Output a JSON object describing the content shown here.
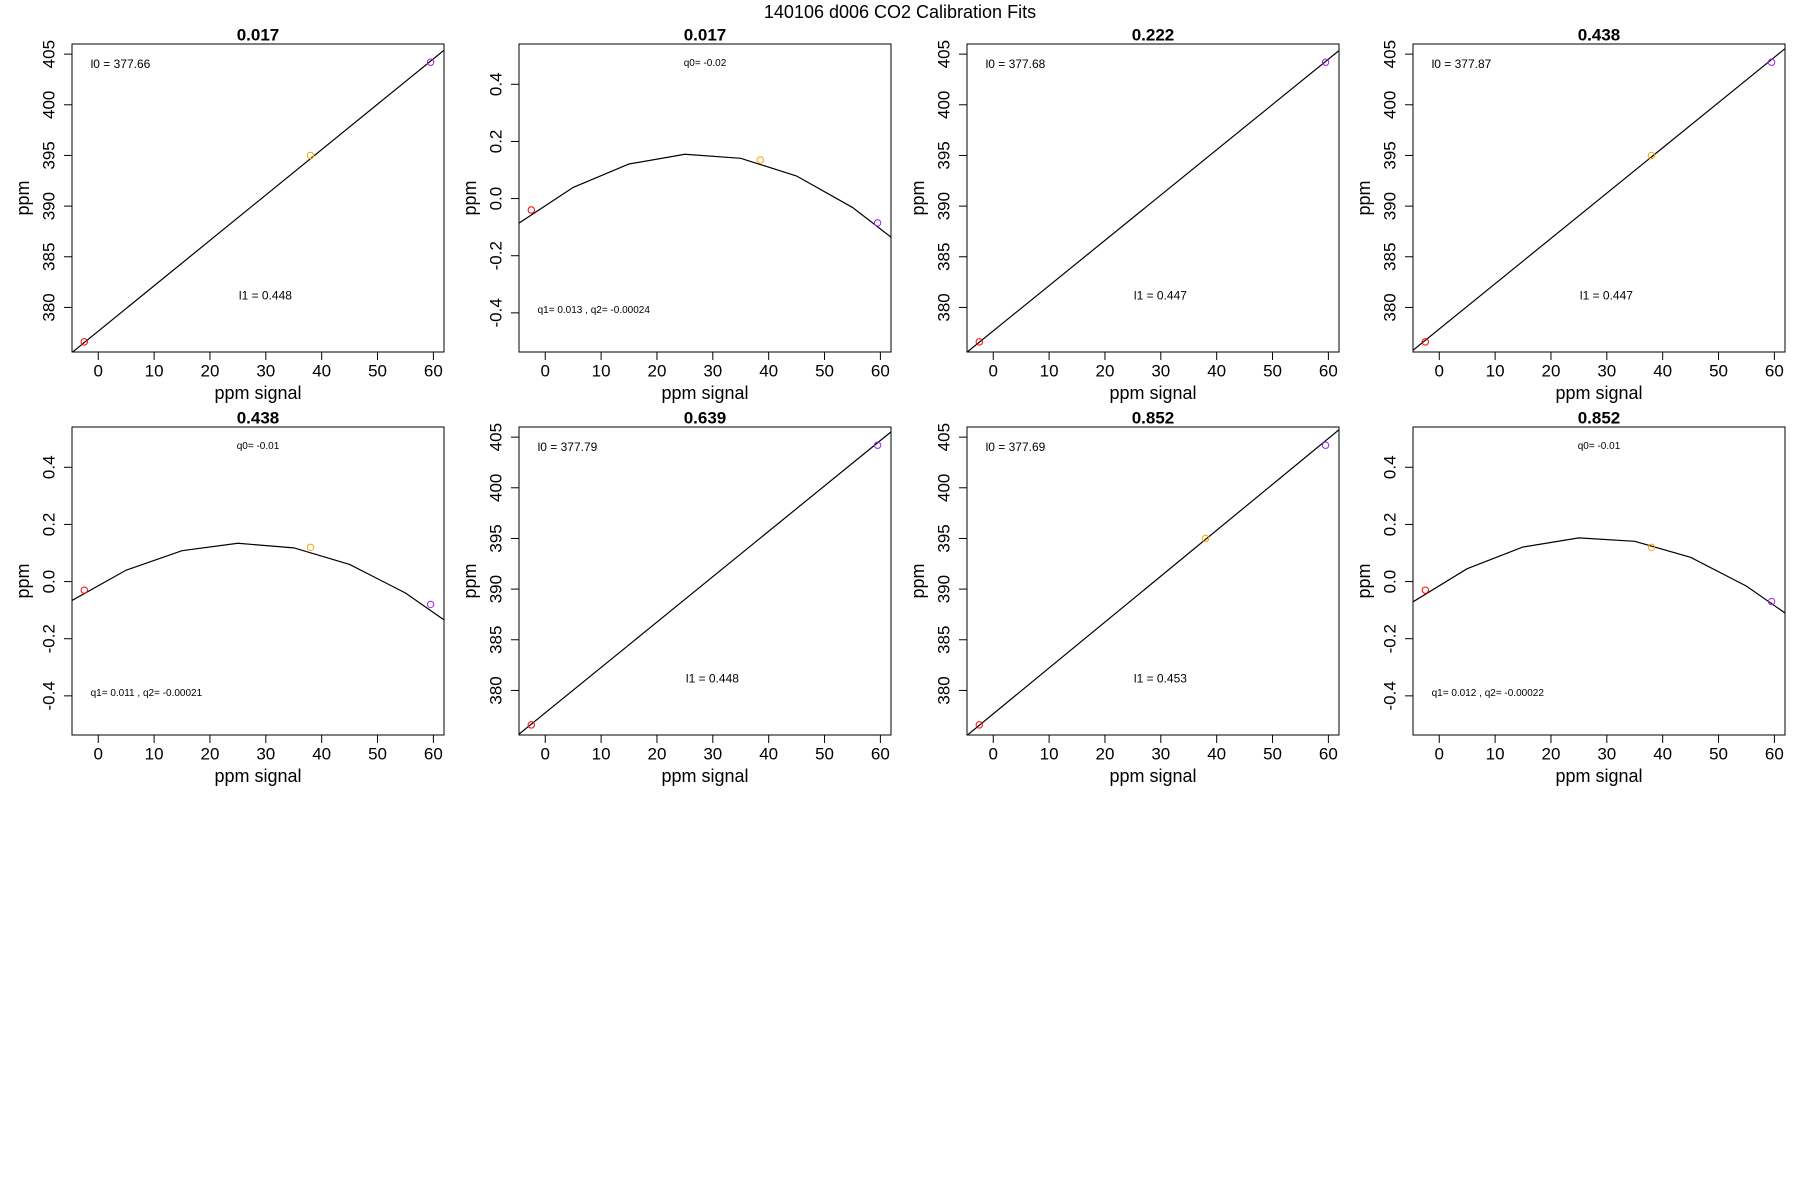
{
  "title": "140106   d006   CO2 Calibration Fits",
  "chart_data": [
    {
      "type": "scatter",
      "title": "0.017",
      "xlabel": "ppm signal",
      "ylabel": "ppm",
      "xlim": [
        -4.7,
        61.9
      ],
      "ylim": [
        375.6,
        406.0
      ],
      "xticks": [
        0,
        10,
        20,
        30,
        40,
        50,
        60
      ],
      "yticks": [
        380,
        385,
        390,
        395,
        400,
        405
      ],
      "series": [
        {
          "color": "#ff0000",
          "x": [
            -2.5
          ],
          "values": [
            376.6
          ]
        },
        {
          "color": "#ffa500",
          "x": [
            38
          ],
          "values": [
            395.0
          ]
        },
        {
          "color": "#a020f0",
          "x": [
            59.5
          ],
          "values": [
            404.2
          ]
        }
      ],
      "fit": {
        "color": "#000000",
        "x": [
          -4.7,
          61.9
        ],
        "values": [
          375.55,
          405.39
        ]
      },
      "annotations": [
        "l0 =  377.66",
        "l1 =  0.448"
      ]
    },
    {
      "type": "scatter",
      "title": "0.017",
      "xlabel": "ppm signal",
      "ylabel": "ppm",
      "xlim": [
        -4.7,
        61.9
      ],
      "ylim": [
        -0.537,
        0.541
      ],
      "xticks": [
        0,
        10,
        20,
        30,
        40,
        50,
        60
      ],
      "yticks": [
        -0.4,
        -0.2,
        {
          "value": 0,
          "label": "0.0"
        },
        0.2,
        0.4
      ],
      "series": [
        {
          "color": "#ff0000",
          "x": [
            -2.5
          ],
          "values": [
            -0.04
          ]
        },
        {
          "color": "#ffa500",
          "x": [
            38.5
          ],
          "values": [
            0.135
          ]
        },
        {
          "color": "#a020f0",
          "x": [
            59.5
          ],
          "values": [
            -0.085
          ]
        }
      ],
      "fit": {
        "color": "#000000",
        "x": [
          -4.7,
          5,
          15,
          25,
          35,
          45,
          55,
          61.9
        ],
        "values": [
          -0.086,
          0.039,
          0.121,
          0.155,
          0.141,
          0.079,
          -0.031,
          -0.135
        ]
      },
      "annotations": [
        "q0= -0.02",
        "q1= 0.013 , q2= -0.00024"
      ]
    },
    {
      "type": "scatter",
      "title": "0.222",
      "xlabel": "ppm signal",
      "ylabel": "ppm",
      "xlim": [
        -4.7,
        61.9
      ],
      "ylim": [
        375.6,
        406.0
      ],
      "xticks": [
        0,
        10,
        20,
        30,
        40,
        50,
        60
      ],
      "yticks": [
        380,
        385,
        390,
        395,
        400,
        405
      ],
      "series": [
        {
          "color": "#ff0000",
          "x": [
            -2.5
          ],
          "values": [
            376.6
          ]
        },
        {
          "color": "#a020f0",
          "x": [
            59.5
          ],
          "values": [
            404.2
          ]
        }
      ],
      "fit": {
        "color": "#000000",
        "x": [
          -4.7,
          61.9
        ],
        "values": [
          375.58,
          405.35
        ]
      },
      "annotations": [
        "l0 =  377.68",
        "l1 =  0.447"
      ]
    },
    {
      "type": "scatter",
      "title": "0.438",
      "xlabel": "ppm signal",
      "ylabel": "ppm",
      "xlim": [
        -4.7,
        61.9
      ],
      "ylim": [
        375.6,
        406.0
      ],
      "xticks": [
        0,
        10,
        20,
        30,
        40,
        50,
        60
      ],
      "yticks": [
        380,
        385,
        390,
        395,
        400,
        405
      ],
      "series": [
        {
          "color": "#ff0000",
          "x": [
            -2.5
          ],
          "values": [
            376.6
          ]
        },
        {
          "color": "#ffa500",
          "x": [
            38
          ],
          "values": [
            395.0
          ]
        },
        {
          "color": "#a020f0",
          "x": [
            59.5
          ],
          "values": [
            404.2
          ]
        }
      ],
      "fit": {
        "color": "#000000",
        "x": [
          -4.7,
          61.9
        ],
        "values": [
          375.77,
          405.54
        ]
      },
      "annotations": [
        "l0 =  377.87",
        "l1 =  0.447"
      ]
    },
    {
      "type": "scatter",
      "title": "0.438",
      "xlabel": "ppm signal",
      "ylabel": "ppm",
      "xlim": [
        -4.7,
        61.9
      ],
      "ylim": [
        -0.537,
        0.541
      ],
      "xticks": [
        0,
        10,
        20,
        30,
        40,
        50,
        60
      ],
      "yticks": [
        -0.4,
        -0.2,
        {
          "value": 0,
          "label": "0.0"
        },
        0.2,
        0.4
      ],
      "series": [
        {
          "color": "#ff0000",
          "x": [
            -2.5
          ],
          "values": [
            -0.03
          ]
        },
        {
          "color": "#ffa500",
          "x": [
            38
          ],
          "values": [
            0.12
          ]
        },
        {
          "color": "#a020f0",
          "x": [
            59.5
          ],
          "values": [
            -0.08
          ]
        }
      ],
      "fit": {
        "color": "#000000",
        "x": [
          -4.7,
          5,
          15,
          25,
          35,
          45,
          55,
          61.9
        ],
        "values": [
          -0.066,
          0.04,
          0.108,
          0.134,
          0.118,
          0.06,
          -0.04,
          -0.134
        ]
      },
      "annotations": [
        "q0= -0.01",
        "q1= 0.011 , q2= -0.00021"
      ]
    },
    {
      "type": "scatter",
      "title": "0.639",
      "xlabel": "ppm signal",
      "ylabel": "ppm",
      "xlim": [
        -4.7,
        61.9
      ],
      "ylim": [
        375.6,
        406.0
      ],
      "xticks": [
        0,
        10,
        20,
        30,
        40,
        50,
        60
      ],
      "yticks": [
        380,
        385,
        390,
        395,
        400,
        405
      ],
      "series": [
        {
          "color": "#ff0000",
          "x": [
            -2.5
          ],
          "values": [
            376.6
          ]
        },
        {
          "color": "#a020f0",
          "x": [
            59.5
          ],
          "values": [
            404.2
          ]
        }
      ],
      "fit": {
        "color": "#000000",
        "x": [
          -4.7,
          61.9
        ],
        "values": [
          375.68,
          405.52
        ]
      },
      "annotations": [
        "l0 =  377.79",
        "l1 =  0.448"
      ]
    },
    {
      "type": "scatter",
      "title": "0.852",
      "xlabel": "ppm signal",
      "ylabel": "ppm",
      "xlim": [
        -4.7,
        61.9
      ],
      "ylim": [
        375.6,
        406.0
      ],
      "xticks": [
        0,
        10,
        20,
        30,
        40,
        50,
        60
      ],
      "yticks": [
        380,
        385,
        390,
        395,
        400,
        405
      ],
      "series": [
        {
          "color": "#ff0000",
          "x": [
            -2.5
          ],
          "values": [
            376.6
          ]
        },
        {
          "color": "#ffa500",
          "x": [
            38
          ],
          "values": [
            395.0
          ]
        },
        {
          "color": "#a020f0",
          "x": [
            59.5
          ],
          "values": [
            404.2
          ]
        }
      ],
      "fit": {
        "color": "#000000",
        "x": [
          -4.7,
          61.9
        ],
        "values": [
          375.56,
          405.73
        ]
      },
      "annotations": [
        "l0 =  377.69",
        "l1 =  0.453"
      ]
    },
    {
      "type": "scatter",
      "title": "0.852",
      "xlabel": "ppm signal",
      "ylabel": "ppm",
      "xlim": [
        -4.7,
        61.9
      ],
      "ylim": [
        -0.537,
        0.541
      ],
      "xticks": [
        0,
        10,
        20,
        30,
        40,
        50,
        60
      ],
      "yticks": [
        -0.4,
        -0.2,
        {
          "value": 0,
          "label": "0.0"
        },
        0.2,
        0.4
      ],
      "series": [
        {
          "color": "#ff0000",
          "x": [
            -2.5
          ],
          "values": [
            -0.03
          ]
        },
        {
          "color": "#ffa500",
          "x": [
            38
          ],
          "values": [
            0.12
          ]
        },
        {
          "color": "#a020f0",
          "x": [
            59.5
          ],
          "values": [
            -0.07
          ]
        }
      ],
      "fit": {
        "color": "#000000",
        "x": [
          -4.7,
          5,
          15,
          25,
          35,
          45,
          55,
          61.9
        ],
        "values": [
          -0.071,
          0.045,
          0.121,
          0.153,
          0.141,
          0.085,
          -0.016,
          -0.11
        ]
      },
      "annotations": [
        "q0= -0.01",
        "q1= 0.012 , q2= -0.00022"
      ]
    }
  ]
}
